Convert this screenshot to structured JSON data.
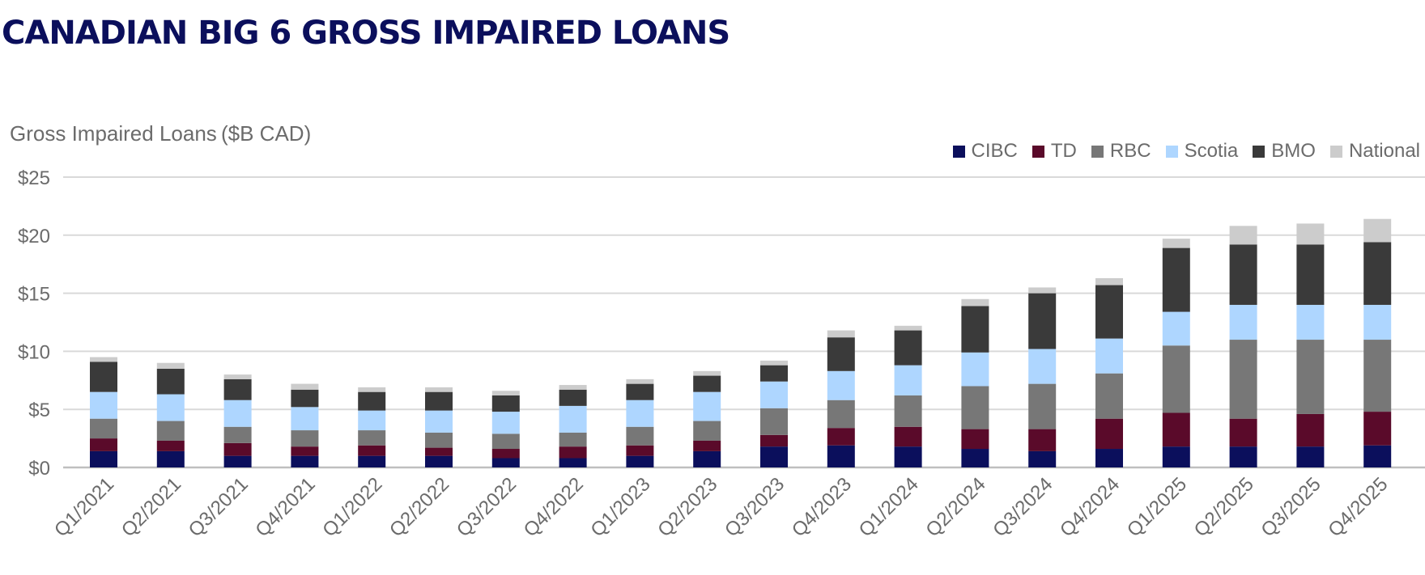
{
  "header": {
    "title": "CANADIAN BIG 6 GROSS IMPAIRED LOANS"
  },
  "chart_data": {
    "type": "bar",
    "stacked": true,
    "title": "CANADIAN BIG 6 GROSS IMPAIRED LOANS",
    "ylabel": "Gross Impaired Loans ($B CAD)",
    "xlabel": "",
    "ylim": [
      0,
      25
    ],
    "yticks": [
      0,
      5,
      10,
      15,
      20,
      25
    ],
    "ytick_labels": [
      "$0",
      "$5",
      "$10",
      "$15",
      "$20",
      "$25"
    ],
    "grid": true,
    "legend_position": "top-right",
    "categories": [
      "Q1/2021",
      "Q2/2021",
      "Q3/2021",
      "Q4/2021",
      "Q1/2022",
      "Q2/2022",
      "Q3/2022",
      "Q4/2022",
      "Q1/2023",
      "Q2/2023",
      "Q3/2023",
      "Q4/2023",
      "Q1/2024",
      "Q2/2024",
      "Q3/2024",
      "Q4/2024",
      "Q1/2025",
      "Q2/2025",
      "Q3/2025",
      "Q4/2025"
    ],
    "series": [
      {
        "name": "CIBC",
        "color": "#0b0f5c",
        "values": [
          1.4,
          1.4,
          1.0,
          1.0,
          1.0,
          1.0,
          0.8,
          0.8,
          1.0,
          1.4,
          1.8,
          1.9,
          1.8,
          1.6,
          1.4,
          1.6,
          1.8,
          1.8,
          1.8,
          1.9
        ]
      },
      {
        "name": "TD",
        "color": "#5a0a2a",
        "values": [
          1.1,
          0.9,
          1.1,
          0.8,
          0.9,
          0.7,
          0.8,
          1.0,
          0.9,
          0.9,
          1.0,
          1.5,
          1.7,
          1.7,
          1.9,
          2.6,
          2.9,
          2.4,
          2.8,
          2.9
        ]
      },
      {
        "name": "RBC",
        "color": "#777777",
        "values": [
          1.7,
          1.7,
          1.4,
          1.4,
          1.3,
          1.3,
          1.3,
          1.2,
          1.6,
          1.7,
          2.3,
          2.4,
          2.7,
          3.7,
          3.9,
          3.9,
          5.8,
          6.8,
          6.4,
          6.2
        ]
      },
      {
        "name": "Scotia",
        "color": "#aed6ff",
        "values": [
          2.3,
          2.3,
          2.3,
          2.0,
          1.7,
          1.9,
          1.9,
          2.3,
          2.3,
          2.5,
          2.3,
          2.5,
          2.6,
          2.9,
          3.0,
          3.0,
          2.9,
          3.0,
          3.0,
          3.0
        ]
      },
      {
        "name": "BMO",
        "color": "#3a3a3a",
        "values": [
          2.6,
          2.2,
          1.8,
          1.5,
          1.6,
          1.6,
          1.4,
          1.4,
          1.4,
          1.4,
          1.4,
          2.9,
          3.0,
          4.0,
          4.8,
          4.6,
          5.5,
          5.2,
          5.2,
          5.4
        ]
      },
      {
        "name": "National",
        "color": "#cccccc",
        "values": [
          0.4,
          0.5,
          0.4,
          0.5,
          0.4,
          0.4,
          0.4,
          0.4,
          0.4,
          0.4,
          0.4,
          0.6,
          0.4,
          0.6,
          0.5,
          0.6,
          0.8,
          1.6,
          1.8,
          2.0
        ]
      }
    ]
  }
}
